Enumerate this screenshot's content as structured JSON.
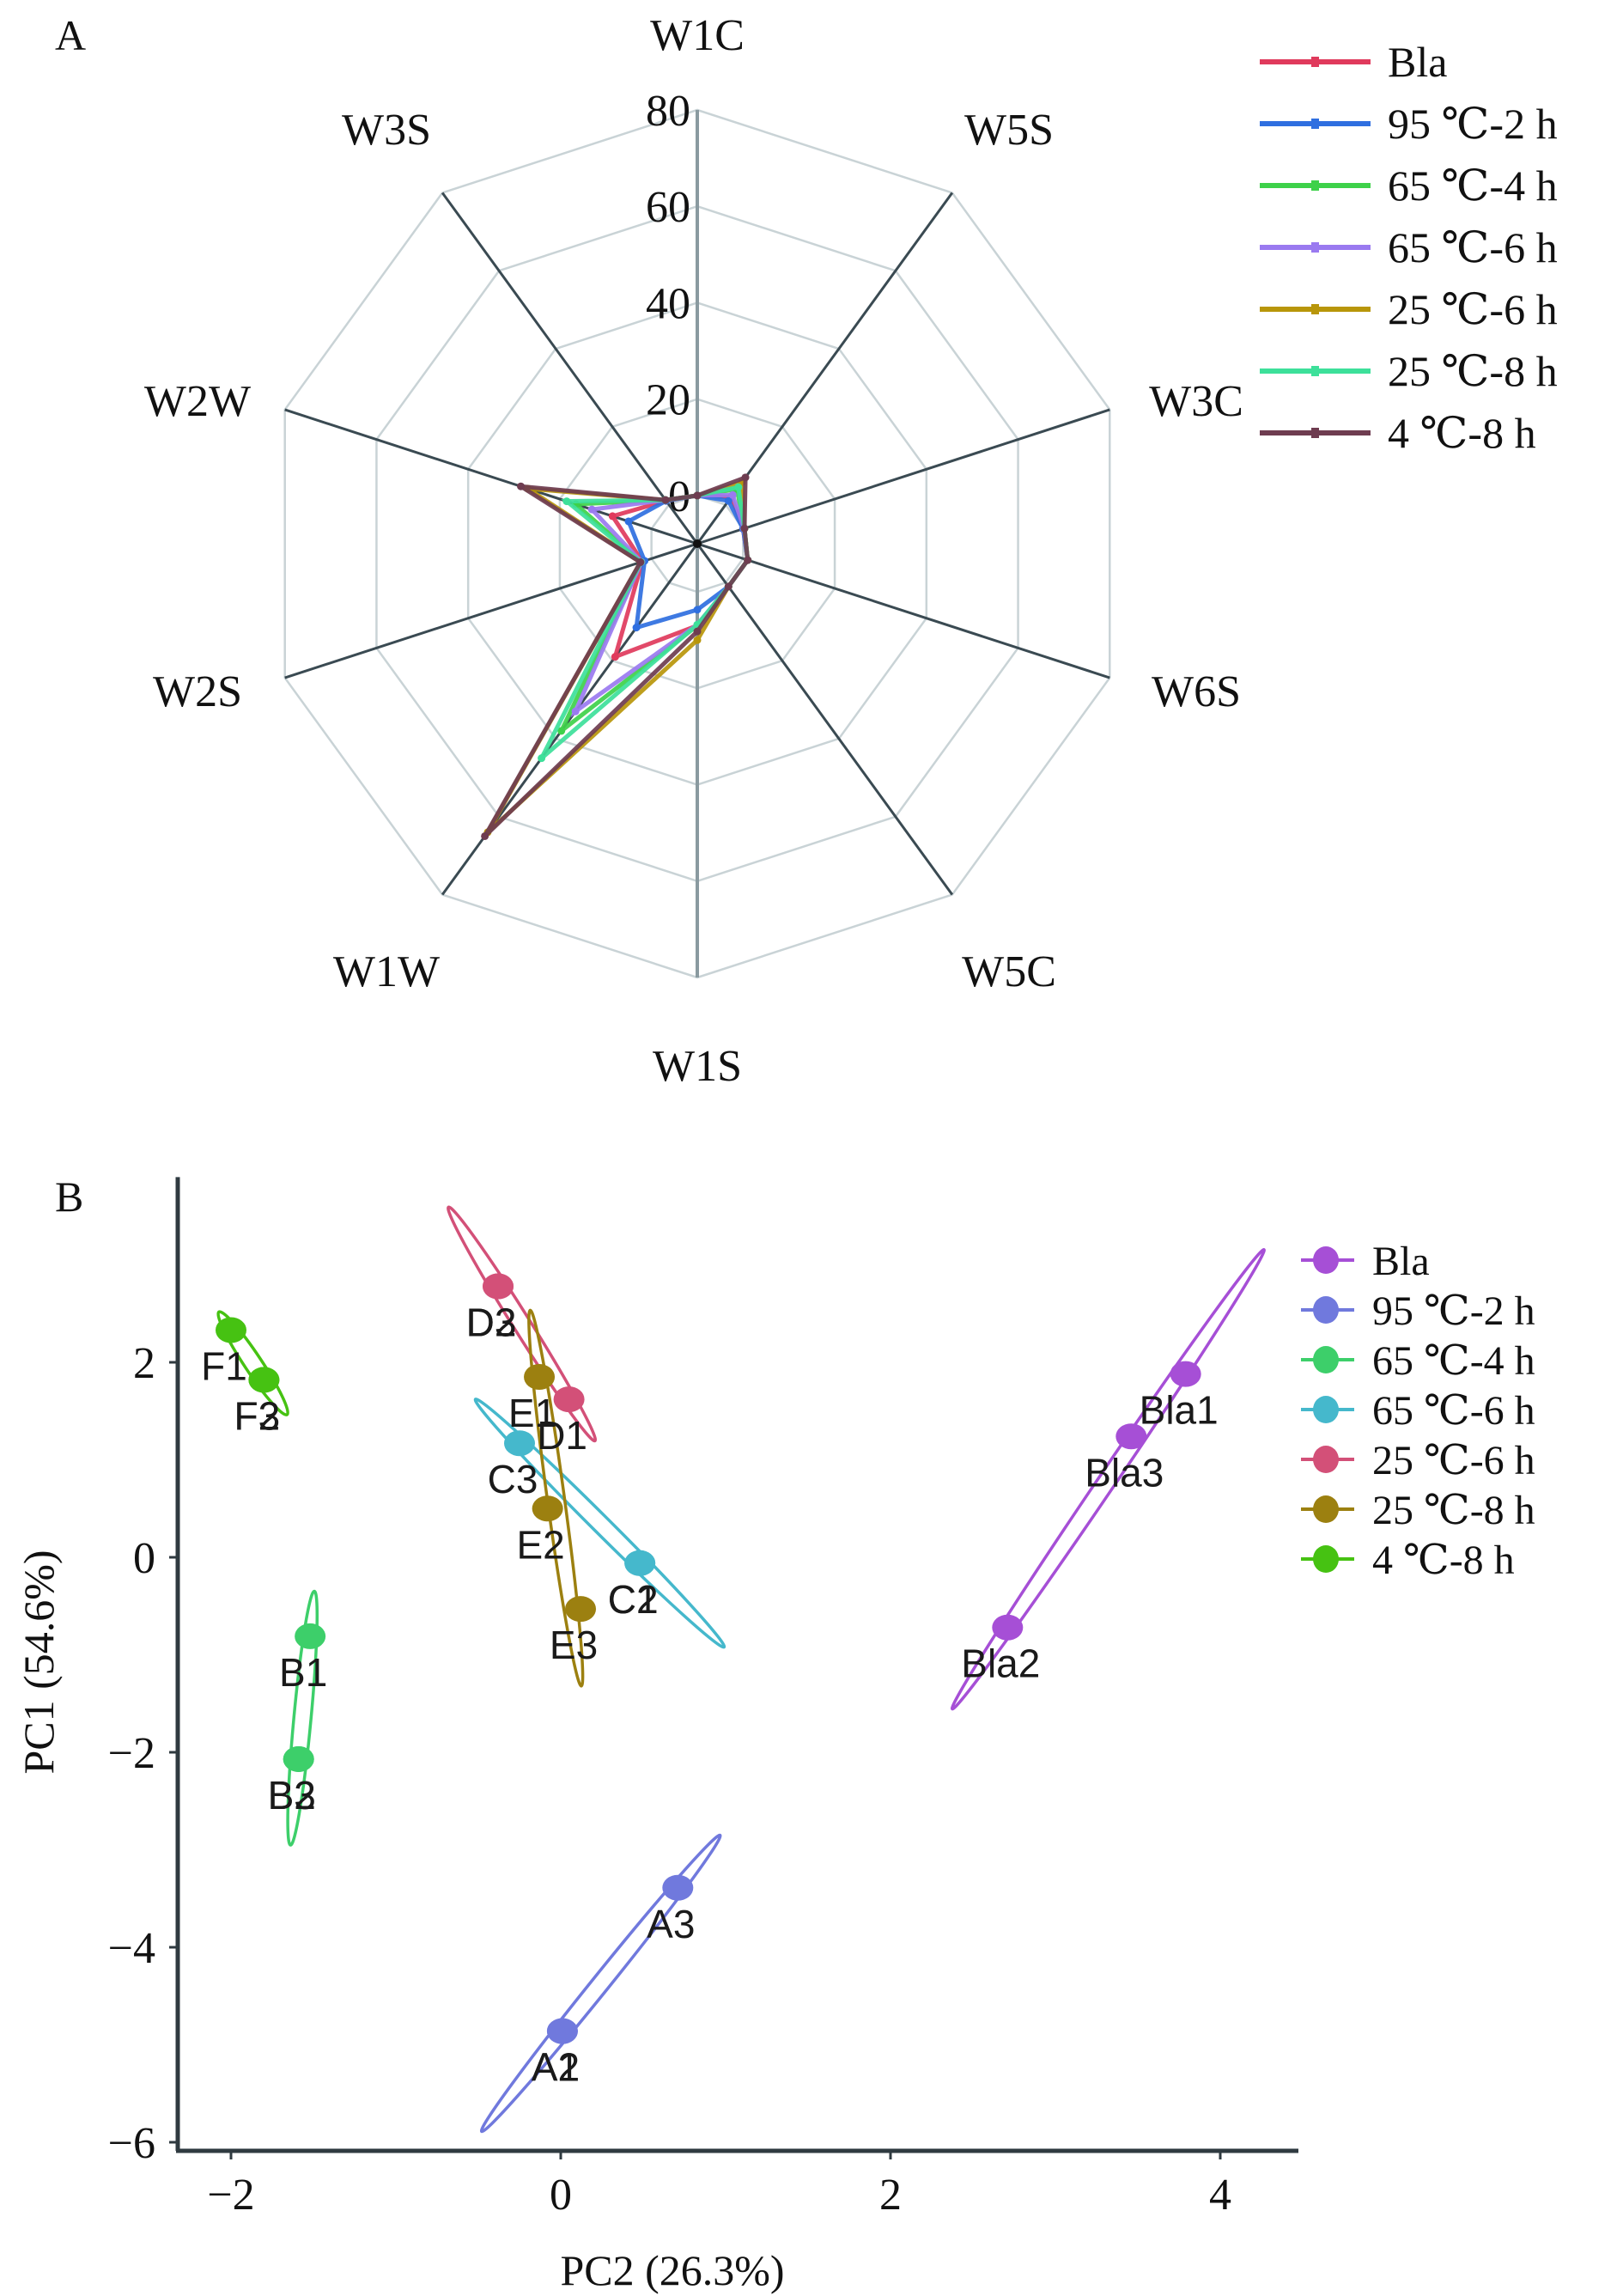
{
  "panels": {
    "a_label": "A",
    "b_label": "B"
  },
  "chart_data": [
    {
      "type": "radar",
      "panel": "A",
      "title": "",
      "axes": [
        "W1C",
        "W5S",
        "W3C",
        "W6S",
        "W5C",
        "W1S",
        "W1W",
        "W2S",
        "W2W",
        "W3S"
      ],
      "radial_range": [
        -10,
        80
      ],
      "radial_ticks": [
        0,
        20,
        40,
        60,
        80
      ],
      "radial_tick_labels": [
        "0",
        "20",
        "40",
        "60",
        "80"
      ],
      "grid": true,
      "legend_position": "top-right",
      "series": [
        {
          "name": "Bla",
          "color": "#e03a5c",
          "values": [
            0,
            2,
            0,
            1,
            1,
            7,
            19,
            2,
            8.5,
            1
          ]
        },
        {
          "name": "95 ℃-2 h",
          "color": "#2f6fe0",
          "values": [
            0,
            1,
            0,
            1,
            1,
            3.7,
            11.5,
            1.5,
            5,
            1
          ]
        },
        {
          "name": "65 ℃-4 h",
          "color": "#3ed14a",
          "values": [
            0,
            4,
            0.3,
            1,
            1,
            7,
            38,
            2.2,
            16.5,
            1.2
          ]
        },
        {
          "name": "65 ℃-6 h",
          "color": "#9a7af0",
          "values": [
            0,
            2.5,
            0.2,
            1,
            1,
            6.8,
            33,
            2.2,
            13,
            1.2
          ]
        },
        {
          "name": "25 ℃-6 h",
          "color": "#b8960a",
          "values": [
            0,
            5.7,
            0.3,
            1,
            1,
            10,
            64,
            2.4,
            27,
            1.2
          ]
        },
        {
          "name": "25 ℃-8 h",
          "color": "#3de09a",
          "values": [
            0,
            4.5,
            0.3,
            1,
            1,
            6.8,
            45,
            2.3,
            18.5,
            1.2
          ]
        },
        {
          "name": "4 ℃-8 h",
          "color": "#6e3c50",
          "values": [
            0,
            7,
            0.3,
            1,
            1,
            8.2,
            65,
            2.4,
            28.5,
            1.2
          ]
        }
      ]
    },
    {
      "type": "scatter",
      "panel": "B",
      "title": "",
      "xlabel": "PC2 (26.3%)",
      "ylabel": "PC1 (54.6%)",
      "xlim": [
        -2.3,
        4.3
      ],
      "ylim": [
        -6.1,
        3.9
      ],
      "xticks": [
        -2,
        0,
        2,
        4
      ],
      "xtick_labels": [
        "−2",
        "0",
        "2",
        "4"
      ],
      "yticks": [
        -6,
        -4,
        -2,
        0,
        2
      ],
      "ytick_labels": [
        "−6",
        "−4",
        "−2",
        "0",
        "2"
      ],
      "grid": false,
      "legend_position": "top-right",
      "series": [
        {
          "name": "Bla",
          "color": "#a64fd6",
          "points": [
            {
              "label": "Bla1",
              "x": 3.79,
              "y": 1.88
            },
            {
              "label": "Bla2",
              "x": 2.71,
              "y": -0.72
            },
            {
              "label": "Bla3",
              "x": 3.46,
              "y": 1.24
            }
          ]
        },
        {
          "name": "95 ℃-2 h",
          "color": "#7079dd",
          "points": [
            {
              "label": "A1",
              "x": 0.01,
              "y": -4.86
            },
            {
              "label": "A2",
              "x": 0.01,
              "y": -4.86
            },
            {
              "label": "A3",
              "x": 0.71,
              "y": -3.39
            }
          ]
        },
        {
          "name": "65 ℃-4 h",
          "color": "#3dcf6a",
          "points": [
            {
              "label": "B1",
              "x": -1.52,
              "y": -0.81
            },
            {
              "label": "B2",
              "x": -1.59,
              "y": -2.07
            },
            {
              "label": "B3",
              "x": -1.59,
              "y": -2.07
            }
          ]
        },
        {
          "name": "65 ℃-6 h",
          "color": "#45b8cc",
          "points": [
            {
              "label": "C1",
              "x": 0.48,
              "y": -0.06
            },
            {
              "label": "C2",
              "x": 0.48,
              "y": -0.06
            },
            {
              "label": "C3",
              "x": -0.25,
              "y": 1.17
            }
          ]
        },
        {
          "name": "25 ℃-6 h",
          "color": "#d35078",
          "points": [
            {
              "label": "D1",
              "x": 0.05,
              "y": 1.62
            },
            {
              "label": "D2",
              "x": -0.38,
              "y": 2.78
            },
            {
              "label": "D3",
              "x": -0.38,
              "y": 2.78
            }
          ]
        },
        {
          "name": "25 ℃-8 h",
          "color": "#9c8010",
          "points": [
            {
              "label": "E1",
              "x": -0.13,
              "y": 1.85
            },
            {
              "label": "E2",
              "x": -0.08,
              "y": 0.5
            },
            {
              "label": "E3",
              "x": 0.12,
              "y": -0.53
            }
          ]
        },
        {
          "name": "4 ℃-8 h",
          "color": "#46c212",
          "points": [
            {
              "label": "F1",
              "x": -2.0,
              "y": 2.33
            },
            {
              "label": "F2",
              "x": -1.8,
              "y": 1.82
            },
            {
              "label": "F3",
              "x": -1.8,
              "y": 1.82
            }
          ]
        }
      ]
    }
  ]
}
